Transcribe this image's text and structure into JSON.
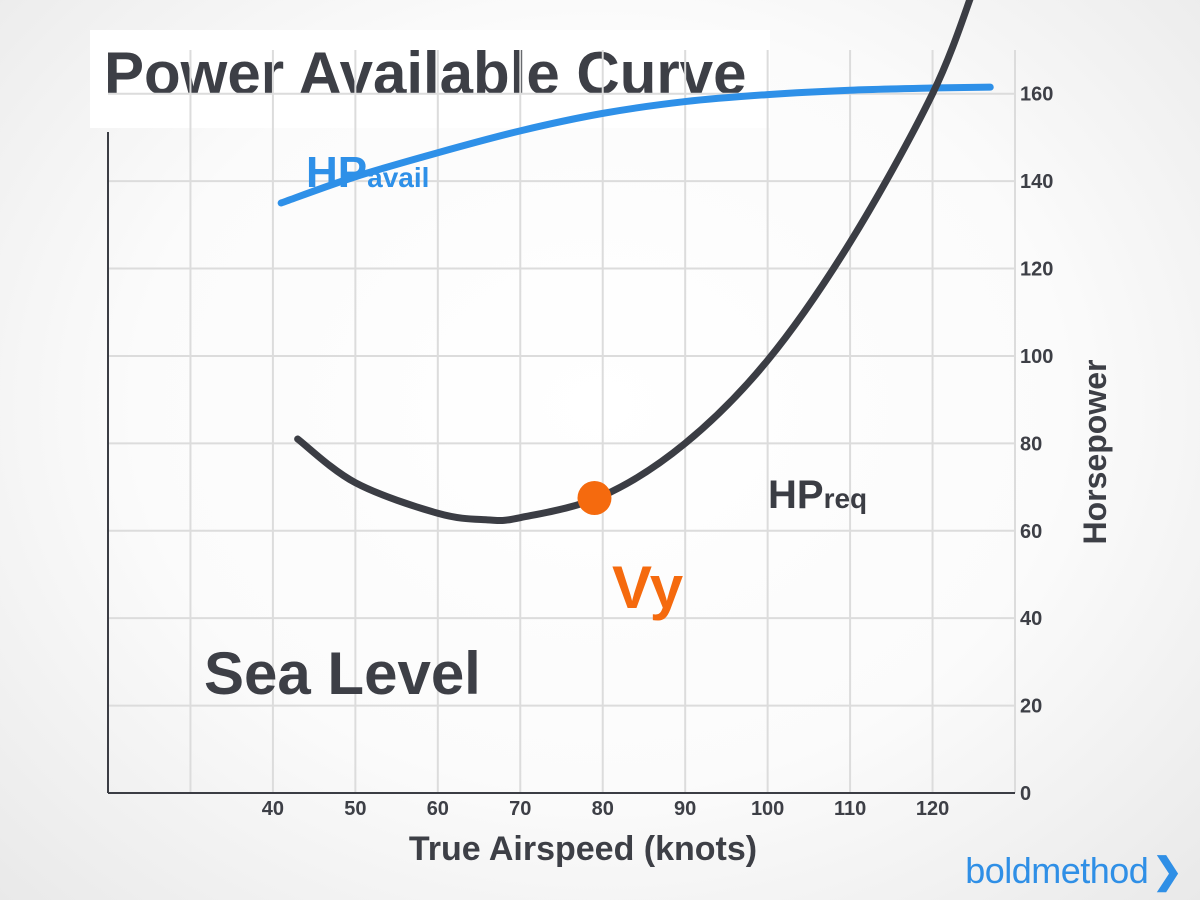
{
  "chart_data": {
    "type": "line",
    "title": "Power Available Curve",
    "xlabel": "True Airspeed (knots)",
    "ylabel": "Horsepower",
    "xlim": [
      20,
      130
    ],
    "ylim": [
      0,
      170
    ],
    "x_ticks": [
      40,
      50,
      60,
      70,
      80,
      90,
      100,
      110,
      120
    ],
    "y_ticks": [
      0,
      20,
      40,
      60,
      80,
      100,
      120,
      140,
      160
    ],
    "grid": true,
    "y_axis_position": "right",
    "series": [
      {
        "name": "HPavail",
        "label_main": "HP",
        "label_sub": "avail",
        "color": "#2e90e8",
        "x": [
          41,
          50,
          60,
          70,
          80,
          90,
          100,
          110,
          120,
          127
        ],
        "y": [
          135,
          141,
          146.5,
          151.5,
          155.5,
          158.2,
          159.8,
          160.8,
          161.3,
          161.5
        ]
      },
      {
        "name": "HPreq",
        "label_main": "HP",
        "label_sub": "req",
        "color": "#3b3d44",
        "x": [
          43,
          50,
          60,
          66,
          70,
          80,
          90,
          100,
          110,
          120,
          125
        ],
        "y": [
          81,
          71,
          64,
          62.5,
          63,
          68,
          80,
          99,
          126,
          160,
          184
        ]
      }
    ],
    "annotations": [
      {
        "text": "Vy",
        "x": 79,
        "y": 67.5,
        "color": "#f56a0e"
      },
      {
        "text": "Sea Level"
      }
    ]
  },
  "logo": {
    "text": "boldmethod",
    "chevron": "❯"
  }
}
